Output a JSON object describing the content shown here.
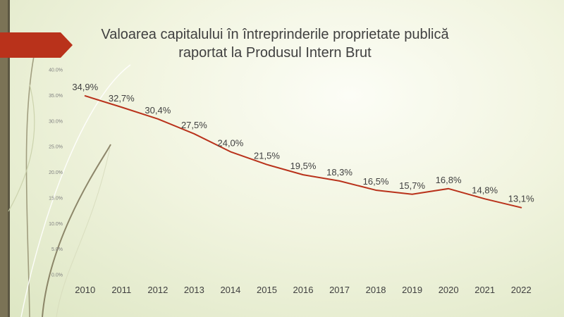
{
  "colors": {
    "left_bar": "#7b7356",
    "left_bar_dark": "#5b5642",
    "chevron": "#b9321b",
    "line": "#b9321b",
    "text": "#404040",
    "tick_text": "#7f7f7f"
  },
  "title": {
    "line1": "Valoarea capitalului în întreprinderile proprietate publică",
    "line2": "raportat la Produsul Intern Brut"
  },
  "chart_data": {
    "type": "line",
    "title": "Valoarea capitalului în întreprinderile proprietate publică raportat la Produsul Intern Brut",
    "xlabel": "",
    "ylabel": "",
    "categories": [
      "2010",
      "2011",
      "2012",
      "2013",
      "2014",
      "2015",
      "2016",
      "2017",
      "2018",
      "2019",
      "2020",
      "2021",
      "2022"
    ],
    "series": [
      {
        "values": [
          34.9,
          32.7,
          30.4,
          27.5,
          24.0,
          21.5,
          19.5,
          18.3,
          16.5,
          15.7,
          16.8,
          14.8,
          13.1
        ],
        "data_labels": [
          "34,9%",
          "32,7%",
          "30,4%",
          "27,5%",
          "24,0%",
          "21,5%",
          "19,5%",
          "18,3%",
          "16,5%",
          "15,7%",
          "16,8%",
          "14,8%",
          "13,1%"
        ]
      }
    ],
    "ylim": [
      0,
      40
    ],
    "yticks": [
      0,
      5,
      10,
      15,
      20,
      25,
      30,
      35,
      40
    ],
    "ytick_labels": [
      "0.0%",
      "5.0%",
      "10.0%",
      "15.0%",
      "20.0%",
      "25.0%",
      "30.0%",
      "35.0%",
      "40.0%"
    ],
    "grid": false,
    "legend": "none"
  }
}
